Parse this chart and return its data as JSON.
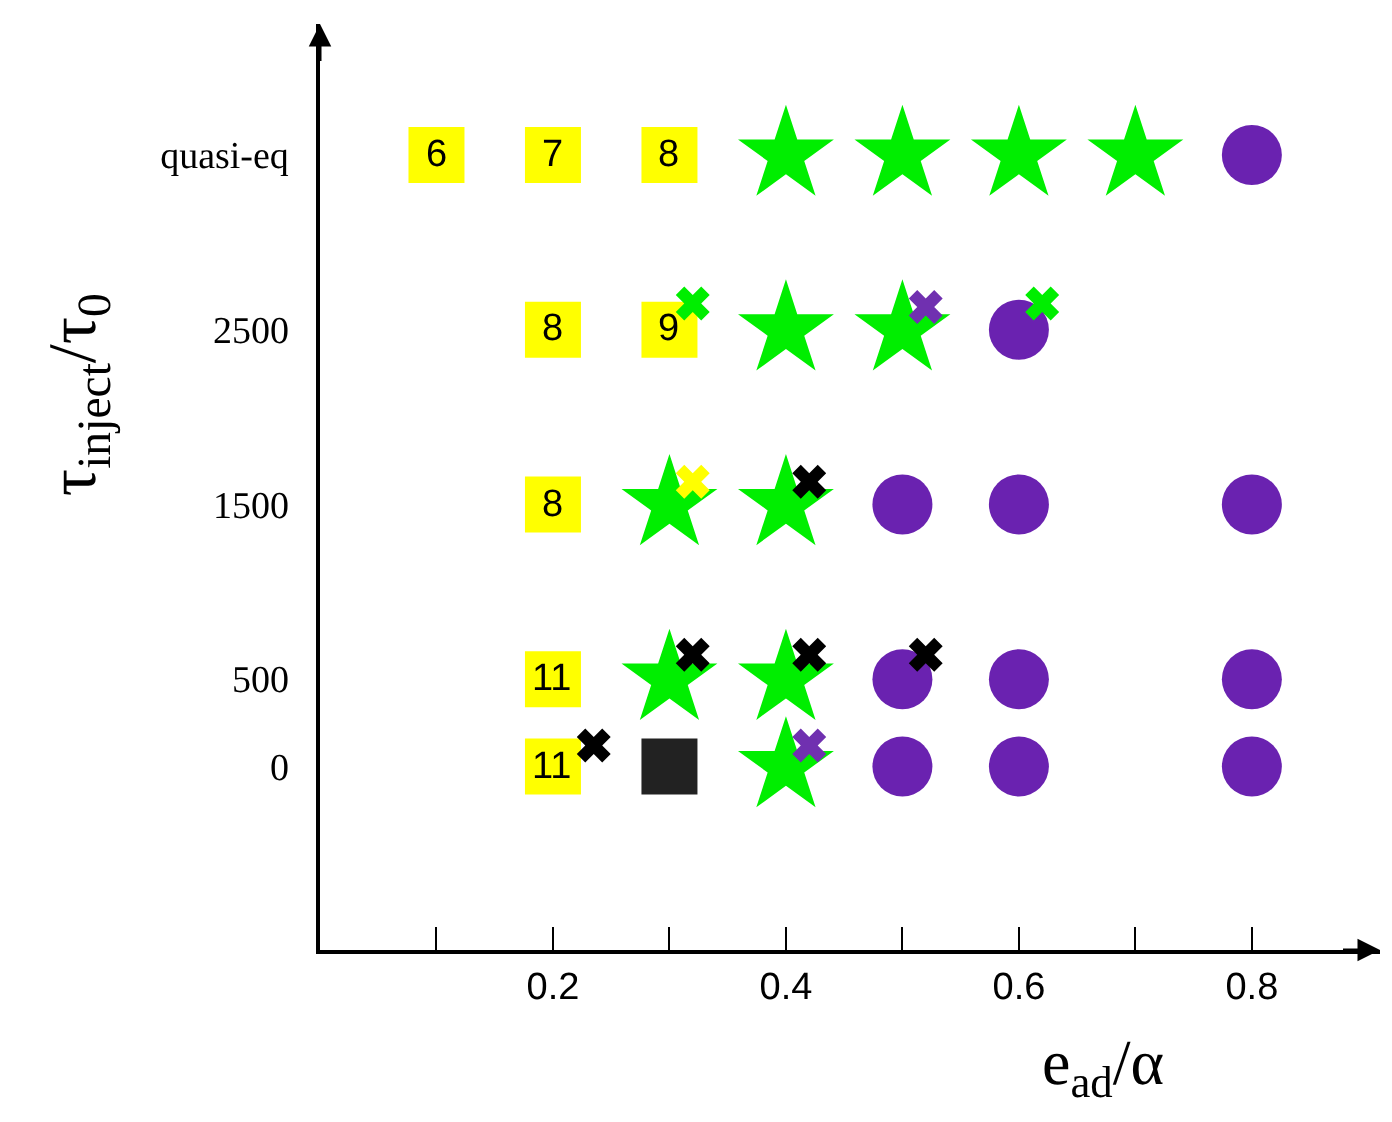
{
  "chart_data": {
    "type": "scatter",
    "xlabel": "e$_{ad}$/α",
    "ylabel": "τ$_{inject}$/τ$_{0}$",
    "xlim": [
      0,
      0.91
    ],
    "ylim": [
      -1050,
      4250
    ],
    "xticks": [
      {
        "value": 0.1,
        "label": null
      },
      0.2,
      {
        "value": 0.3,
        "label": null
      },
      0.4,
      {
        "value": 0.5,
        "label": null
      },
      0.6,
      {
        "value": 0.7,
        "label": null
      },
      0.8
    ],
    "yticks": [
      0,
      500,
      1500,
      2500,
      {
        "value": 3500,
        "label": "quasi-eq"
      }
    ],
    "series": [
      {
        "marker": "square",
        "color": "#ffff00",
        "x": [
          0.1,
          0.2,
          0.3,
          0.2,
          0.3,
          0.2,
          0.2,
          0.2
        ],
        "values": [
          3500,
          3500,
          3500,
          2500,
          2500,
          1500,
          500,
          0
        ]
      },
      {
        "marker": "square",
        "color": "#222222",
        "x": [
          0.3
        ],
        "values": [
          0
        ]
      },
      {
        "marker": "star",
        "color": "#00ee00",
        "x": [
          0.4,
          0.5,
          0.6,
          0.7,
          0.4,
          0.5,
          0.3,
          0.4,
          0.3,
          0.4,
          0.4
        ],
        "values": [
          3500,
          3500,
          3500,
          3500,
          2500,
          2500,
          1500,
          1500,
          500,
          500,
          0
        ]
      },
      {
        "marker": "circle",
        "color": "#6a22b0",
        "x": [
          0.8,
          0.6,
          0.5,
          0.6,
          0.8,
          0.5,
          0.6,
          0.8,
          0.5,
          0.6,
          0.8
        ],
        "values": [
          3500,
          2500,
          1500,
          1500,
          1500,
          500,
          500,
          500,
          0,
          0,
          0
        ]
      },
      {
        "marker": "cross",
        "color": "#00ee00",
        "x": [
          0.32,
          0.62
        ],
        "values": [
          2650,
          2650
        ]
      },
      {
        "marker": "cross",
        "color": "#7030b0",
        "x": [
          0.52,
          0.42
        ],
        "values": [
          2630,
          120
        ]
      },
      {
        "marker": "cross",
        "color": "#ffff00",
        "x": [
          0.32
        ],
        "values": [
          1630
        ]
      },
      {
        "marker": "cross",
        "color": "#000000",
        "x": [
          0.42,
          0.32,
          0.42,
          0.52,
          0.235
        ],
        "values": [
          1630,
          640,
          640,
          640,
          120
        ]
      }
    ],
    "annotations": [
      {
        "text": "6",
        "x": 0.1,
        "y": 3500
      },
      {
        "text": "7",
        "x": 0.2,
        "y": 3500
      },
      {
        "text": "8",
        "x": 0.3,
        "y": 3500
      },
      {
        "text": "8",
        "x": 0.2,
        "y": 2500
      },
      {
        "text": "9",
        "x": 0.3,
        "y": 2500
      },
      {
        "text": "8",
        "x": 0.2,
        "y": 1500
      },
      {
        "text": "11",
        "x": 0.2,
        "y": 500
      },
      {
        "text": "11",
        "x": 0.2,
        "y": 0
      }
    ]
  }
}
